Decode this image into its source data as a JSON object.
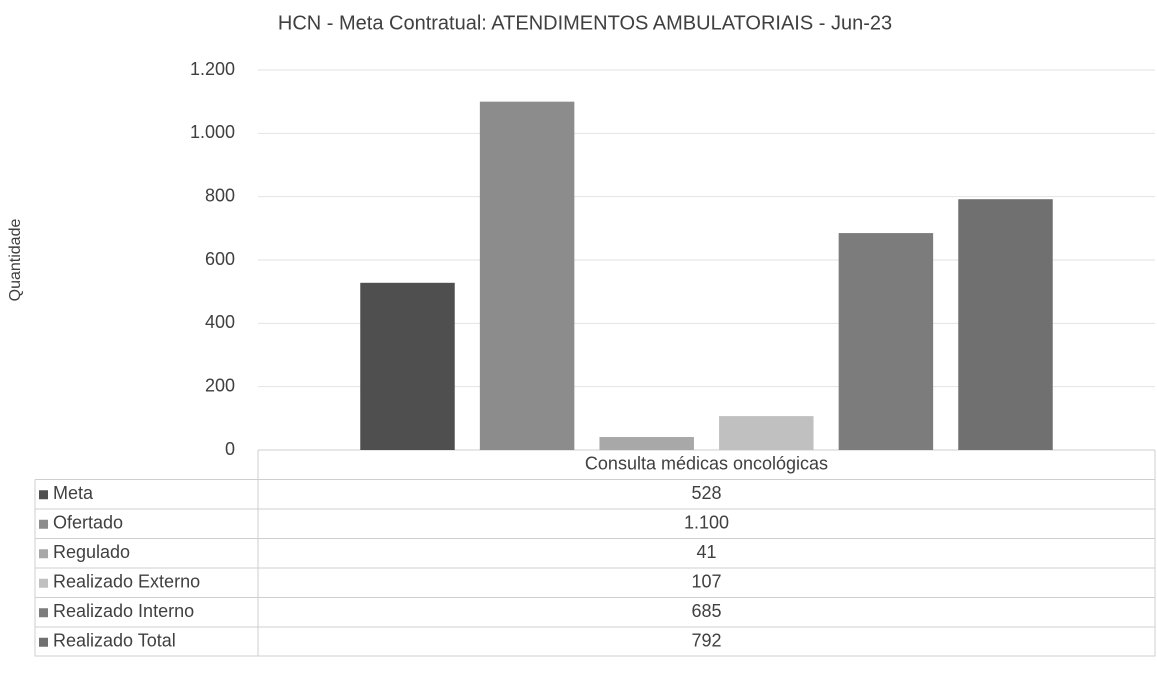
{
  "chart_data": {
    "type": "bar",
    "title": "HCN - Meta Contratual: ATENDIMENTOS AMBULATORIAIS - Jun-23",
    "y_label": "Quantidade",
    "categories": [
      "Consulta médicas oncológicas"
    ],
    "series": [
      {
        "name": "Meta",
        "color": "#4f4f4f",
        "values": [
          528
        ]
      },
      {
        "name": "Ofertado",
        "color": "#8c8c8c",
        "values": [
          1100
        ],
        "value_labels": [
          "1.100"
        ]
      },
      {
        "name": "Regulado",
        "color": "#a8a8a8",
        "values": [
          41
        ]
      },
      {
        "name": "Realizado Externo",
        "color": "#c0c0c0",
        "values": [
          107
        ]
      },
      {
        "name": "Realizado Interno",
        "color": "#7c7c7c",
        "values": [
          685
        ]
      },
      {
        "name": "Realizado Total",
        "color": "#707070",
        "values": [
          792
        ]
      }
    ],
    "ylim": [
      0,
      1200
    ],
    "yticks": [
      0,
      200,
      400,
      600,
      800,
      {
        "value": 1000,
        "label": "1.000"
      },
      {
        "value": 1200,
        "label": "1.200"
      }
    ],
    "grid": true
  }
}
